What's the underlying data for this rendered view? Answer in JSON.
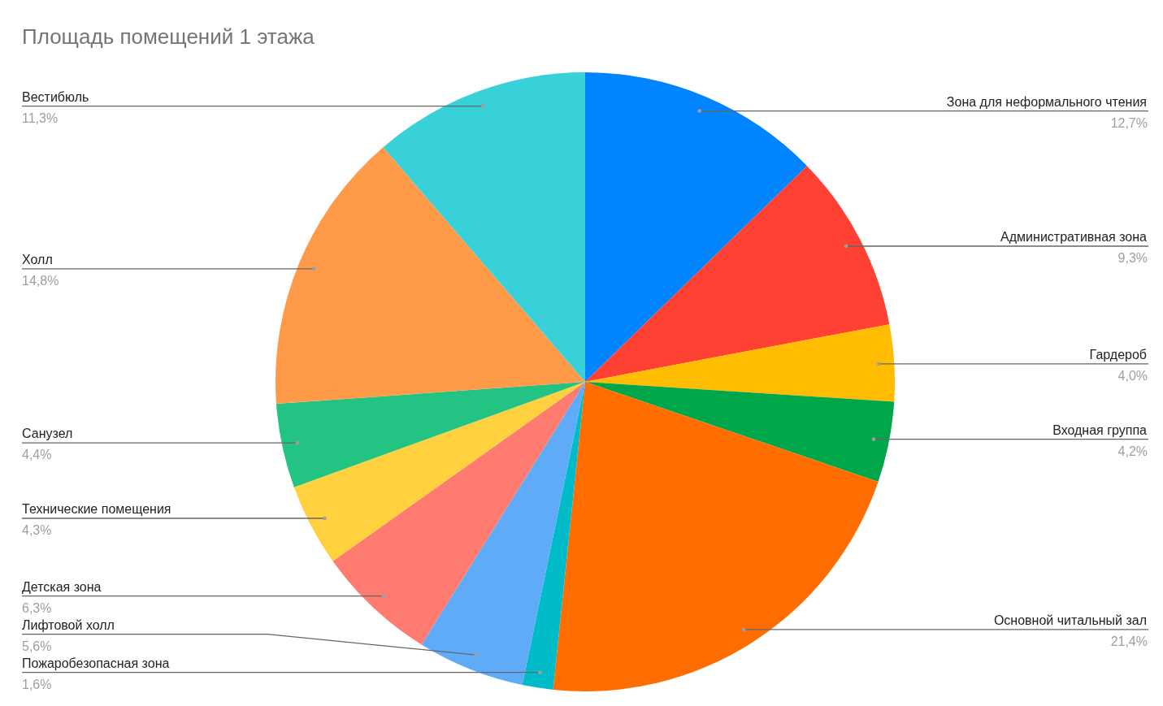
{
  "chart_data": {
    "type": "pie",
    "title": "Площадь помещений 1 этажа",
    "categories": [
      "Зона для неформального чтения",
      "Административная зона",
      "Гардероб",
      "Входная группа",
      "Основной читальный зал",
      "Пожаробезопасная зона",
      "Лифтовой холл",
      "Детская зона",
      "Технические помещения",
      "Санузел",
      "Холл",
      "Вестибюль"
    ],
    "values": [
      12.7,
      9.3,
      4.0,
      4.2,
      21.4,
      1.6,
      5.6,
      6.3,
      4.3,
      4.4,
      14.8,
      11.3
    ],
    "value_labels": [
      "12,7%",
      "9,3%",
      "4,0%",
      "4,2%",
      "21,4%",
      "1,6%",
      "5,6%",
      "6,3%",
      "4,3%",
      "4,4%",
      "14,8%",
      "11,3%"
    ],
    "colors": [
      "#0084ff",
      "#ff4133",
      "#ffbc00",
      "#00a74a",
      "#ff6d00",
      "#00bcc8",
      "#5fabf8",
      "#ff7b70",
      "#ffd13e",
      "#23c384",
      "#ff9a48",
      "#38d1d9"
    ]
  }
}
